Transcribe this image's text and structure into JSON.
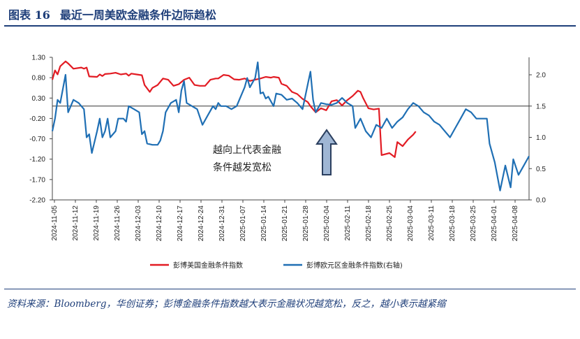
{
  "header": {
    "figure_no": "图表 16",
    "title": "最近一周美欧金融条件边际趋松"
  },
  "source_note": "资料来源：Bloomberg，华创证券；彭博金融条件指数越大表示金融状况越宽松，反之，越小表示越紧缩",
  "colors": {
    "us": "#e21b23",
    "eu": "#1f6fb4",
    "accent": "#1f3f7a"
  },
  "chart_data": {
    "type": "line",
    "dual_axis": true,
    "y_left": {
      "ticks": [
        "1.30",
        "0.80",
        "0.30",
        "-0.20",
        "-0.70",
        "-1.20",
        "-1.70",
        "-2.20"
      ],
      "range": [
        -2.2,
        1.3
      ]
    },
    "y_right": {
      "ticks": [
        "2.0",
        "1.5",
        "1.0",
        "0.5",
        "0.0"
      ],
      "range": [
        0.0,
        2.3
      ]
    },
    "x_ticks": [
      "2024-11-05",
      "2024-11-12",
      "2024-11-19",
      "2024-11-26",
      "2024-12-03",
      "2024-12-10",
      "2024-12-17",
      "2024-12-24",
      "2024-12-31",
      "2025-01-07",
      "2025-01-14",
      "2025-01-21",
      "2025-01-28",
      "2025-02-04",
      "2025-02-11",
      "2025-02-18",
      "2025-02-25",
      "2025-03-04",
      "2025-03-11",
      "2025-03-18",
      "2025-03-25",
      "2025-04-01",
      "2025-04-08"
    ],
    "series": [
      {
        "name": "彭博美国金融条件指数",
        "axis": "left",
        "color": "#e21b23",
        "points": [
          [
            0,
            0.75
          ],
          [
            1,
            0.98
          ],
          [
            2,
            0.88
          ],
          [
            3,
            1.08
          ],
          [
            5,
            1.2
          ],
          [
            6,
            1.15
          ],
          [
            8,
            1.02
          ],
          [
            11,
            1.05
          ],
          [
            12,
            1.02
          ],
          [
            13,
            1.05
          ],
          [
            14,
            0.83
          ],
          [
            17,
            0.82
          ],
          [
            18,
            0.88
          ],
          [
            19,
            0.84
          ],
          [
            20,
            0.89
          ],
          [
            22,
            0.9
          ],
          [
            24,
            0.92
          ],
          [
            26,
            0.88
          ],
          [
            28,
            0.9
          ],
          [
            29,
            0.85
          ],
          [
            30,
            0.9
          ],
          [
            32,
            0.88
          ],
          [
            34,
            0.86
          ],
          [
            35,
            0.62
          ],
          [
            37,
            0.45
          ],
          [
            38,
            0.55
          ],
          [
            40,
            0.62
          ],
          [
            42,
            0.78
          ],
          [
            44,
            0.75
          ],
          [
            46,
            0.6
          ],
          [
            48,
            0.64
          ],
          [
            50,
            0.75
          ],
          [
            52,
            0.8
          ],
          [
            54,
            0.62
          ],
          [
            56,
            0.6
          ],
          [
            58,
            0.6
          ],
          [
            60,
            0.75
          ],
          [
            62,
            0.78
          ],
          [
            63,
            0.78
          ],
          [
            65,
            0.87
          ],
          [
            67,
            0.85
          ],
          [
            69,
            0.76
          ],
          [
            71,
            0.75
          ],
          [
            73,
            0.78
          ],
          [
            75,
            0.72
          ],
          [
            77,
            0.75
          ],
          [
            79,
            0.78
          ],
          [
            81,
            0.82
          ],
          [
            83,
            0.8
          ],
          [
            84,
            0.82
          ],
          [
            86,
            0.8
          ],
          [
            87,
            0.65
          ],
          [
            89,
            0.6
          ],
          [
            91,
            0.45
          ],
          [
            93,
            0.4
          ],
          [
            95,
            0.28
          ],
          [
            97,
            0.2
          ],
          [
            98,
            0.1
          ],
          [
            100,
            -0.05
          ],
          [
            102,
            0.05
          ],
          [
            104,
            0.0
          ],
          [
            106,
            0.22
          ],
          [
            108,
            0.25
          ],
          [
            110,
            0.12
          ],
          [
            112,
            0.25
          ],
          [
            114,
            0.35
          ],
          [
            116,
            0.48
          ],
          [
            117,
            0.45
          ],
          [
            118,
            0.3
          ],
          [
            120,
            0.05
          ],
          [
            122,
            0.02
          ],
          [
            124,
            0.04
          ],
          [
            125,
            -1.1
          ],
          [
            128,
            -1.05
          ],
          [
            130,
            -1.15
          ],
          [
            131,
            -0.78
          ],
          [
            133,
            -0.88
          ],
          [
            135,
            -0.72
          ],
          [
            137,
            -0.6
          ],
          [
            138,
            -0.52
          ]
        ]
      },
      {
        "name": "彭博欧元区金融条件指数(右轴)",
        "axis": "right",
        "color": "#1f6fb4",
        "points": [
          [
            0,
            1.1
          ],
          [
            1,
            1.3
          ],
          [
            2,
            1.6
          ],
          [
            3,
            1.55
          ],
          [
            5,
            2.0
          ],
          [
            6,
            1.4
          ],
          [
            8,
            1.6
          ],
          [
            10,
            1.55
          ],
          [
            11,
            1.5
          ],
          [
            12,
            1.45
          ],
          [
            13,
            1.0
          ],
          [
            14,
            1.05
          ],
          [
            15,
            0.75
          ],
          [
            17,
            1.1
          ],
          [
            18,
            1.3
          ],
          [
            19,
            1.0
          ],
          [
            20,
            1.1
          ],
          [
            21,
            1.3
          ],
          [
            22,
            1.0
          ],
          [
            24,
            1.1
          ],
          [
            25,
            1.3
          ],
          [
            27,
            1.3
          ],
          [
            28,
            1.25
          ],
          [
            29,
            1.5
          ],
          [
            31,
            1.45
          ],
          [
            33,
            1.4
          ],
          [
            34,
            1.05
          ],
          [
            35,
            1.1
          ],
          [
            36,
            0.9
          ],
          [
            38,
            0.88
          ],
          [
            40,
            0.88
          ],
          [
            41,
            0.95
          ],
          [
            42,
            1.1
          ],
          [
            43,
            1.4
          ],
          [
            45,
            1.55
          ],
          [
            47,
            1.6
          ],
          [
            48,
            1.4
          ],
          [
            49,
            1.75
          ],
          [
            50,
            1.9
          ],
          [
            51,
            1.55
          ],
          [
            53,
            1.5
          ],
          [
            55,
            1.45
          ],
          [
            57,
            1.2
          ],
          [
            59,
            1.35
          ],
          [
            61,
            1.5
          ],
          [
            62,
            1.45
          ],
          [
            63,
            1.55
          ],
          [
            64,
            1.5
          ],
          [
            66,
            1.5
          ],
          [
            68,
            1.45
          ],
          [
            70,
            1.5
          ],
          [
            71,
            1.6
          ],
          [
            73,
            1.8
          ],
          [
            74,
            1.95
          ],
          [
            75,
            1.8
          ],
          [
            77,
            1.95
          ],
          [
            78,
            2.2
          ],
          [
            79,
            1.7
          ],
          [
            80,
            1.72
          ],
          [
            81,
            1.62
          ],
          [
            82,
            1.65
          ],
          [
            84,
            1.5
          ],
          [
            85,
            1.7
          ],
          [
            87,
            1.68
          ],
          [
            89,
            1.6
          ],
          [
            91,
            1.62
          ],
          [
            93,
            1.55
          ],
          [
            95,
            1.45
          ],
          [
            97,
            1.85
          ],
          [
            98,
            2.05
          ],
          [
            99,
            1.6
          ],
          [
            100,
            1.4
          ],
          [
            102,
            1.55
          ],
          [
            104,
            1.53
          ],
          [
            106,
            1.52
          ],
          [
            108,
            1.55
          ],
          [
            110,
            1.63
          ],
          [
            112,
            1.55
          ],
          [
            114,
            1.5
          ],
          [
            115,
            1.15
          ],
          [
            117,
            1.3
          ],
          [
            119,
            1.1
          ],
          [
            121,
            1.0
          ],
          [
            123,
            1.2
          ],
          [
            125,
            1.15
          ],
          [
            127,
            1.3
          ],
          [
            129,
            1.15
          ],
          [
            131,
            1.25
          ],
          [
            133,
            1.32
          ],
          [
            135,
            1.45
          ],
          [
            137,
            1.55
          ],
          [
            139,
            1.5
          ],
          [
            141,
            1.4
          ],
          [
            143,
            1.35
          ],
          [
            145,
            1.25
          ],
          [
            147,
            1.2
          ],
          [
            149,
            1.1
          ],
          [
            151,
            1.0
          ],
          [
            153,
            1.15
          ],
          [
            155,
            1.3
          ],
          [
            157,
            1.45
          ],
          [
            159,
            1.4
          ],
          [
            161,
            1.3
          ],
          [
            163,
            1.3
          ],
          [
            165,
            1.3
          ],
          [
            166,
            0.9
          ],
          [
            168,
            0.6
          ],
          [
            170,
            0.15
          ],
          [
            172,
            0.55
          ],
          [
            174,
            0.2
          ],
          [
            175,
            0.65
          ],
          [
            177,
            0.4
          ],
          [
            179,
            0.55
          ],
          [
            181,
            0.7
          ]
        ]
      }
    ],
    "annotation": {
      "lines": [
        "越向上代表金融",
        "条件越发宽松"
      ]
    },
    "legend": {
      "position": "bottom"
    }
  }
}
